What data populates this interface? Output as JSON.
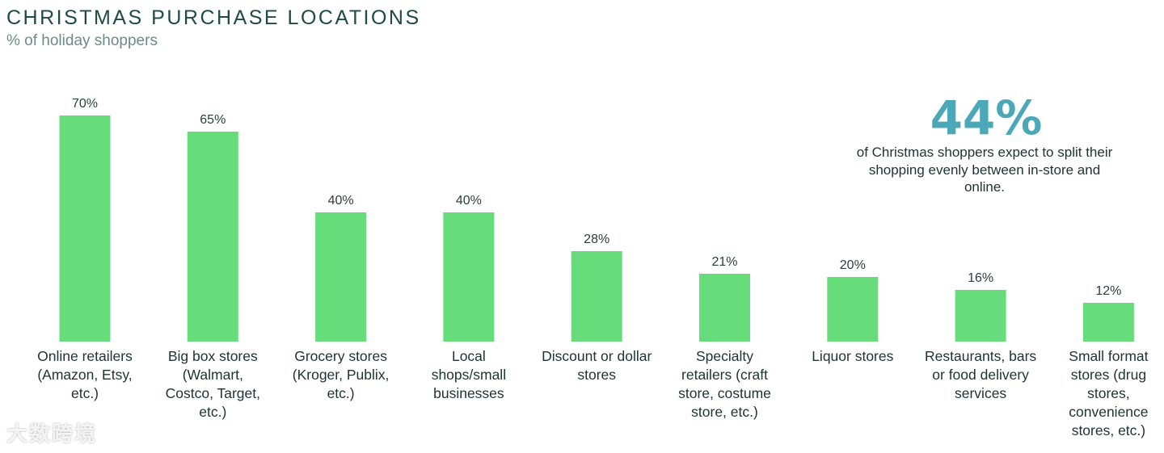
{
  "header": {
    "title": "CHRISTMAS PURCHASE LOCATIONS",
    "subtitle": "% of holiday shoppers"
  },
  "callout": {
    "value": "44%",
    "text": "of Christmas shoppers expect to split their shopping evenly between in-store and online."
  },
  "watermark": {
    "text": "大数跨境"
  },
  "colors": {
    "bar": "#66dd7a",
    "callout": "#4aa8b8",
    "title": "#1f4a45"
  },
  "chart_data": {
    "type": "bar",
    "title": "CHRISTMAS PURCHASE LOCATIONS",
    "subtitle": "% of holiday shoppers",
    "categories": [
      [
        "Online retailers",
        "(Amazon, Etsy,",
        "etc.)"
      ],
      [
        "Big box stores",
        "(Walmart,",
        "Costco, Target,",
        "etc.)"
      ],
      [
        "Grocery stores",
        "(Kroger, Publix,",
        "etc.)"
      ],
      [
        "Local",
        "shops/small",
        "businesses"
      ],
      [
        "Discount or dollar",
        "stores"
      ],
      [
        "Specialty",
        "retailers (craft",
        "store, costume",
        "store, etc.)"
      ],
      [
        "Liquor stores"
      ],
      [
        "Restaurants, bars",
        "or food delivery",
        "services"
      ],
      [
        "Small format",
        "stores (drug",
        "stores,",
        "convenience",
        "stores, etc.)"
      ]
    ],
    "values": [
      70,
      65,
      40,
      40,
      28,
      21,
      20,
      16,
      12
    ],
    "value_labels": [
      "70%",
      "65%",
      "40%",
      "40%",
      "28%",
      "21%",
      "20%",
      "16%",
      "12%"
    ],
    "ylim": [
      0,
      100
    ],
    "grid": false,
    "legend": false
  }
}
